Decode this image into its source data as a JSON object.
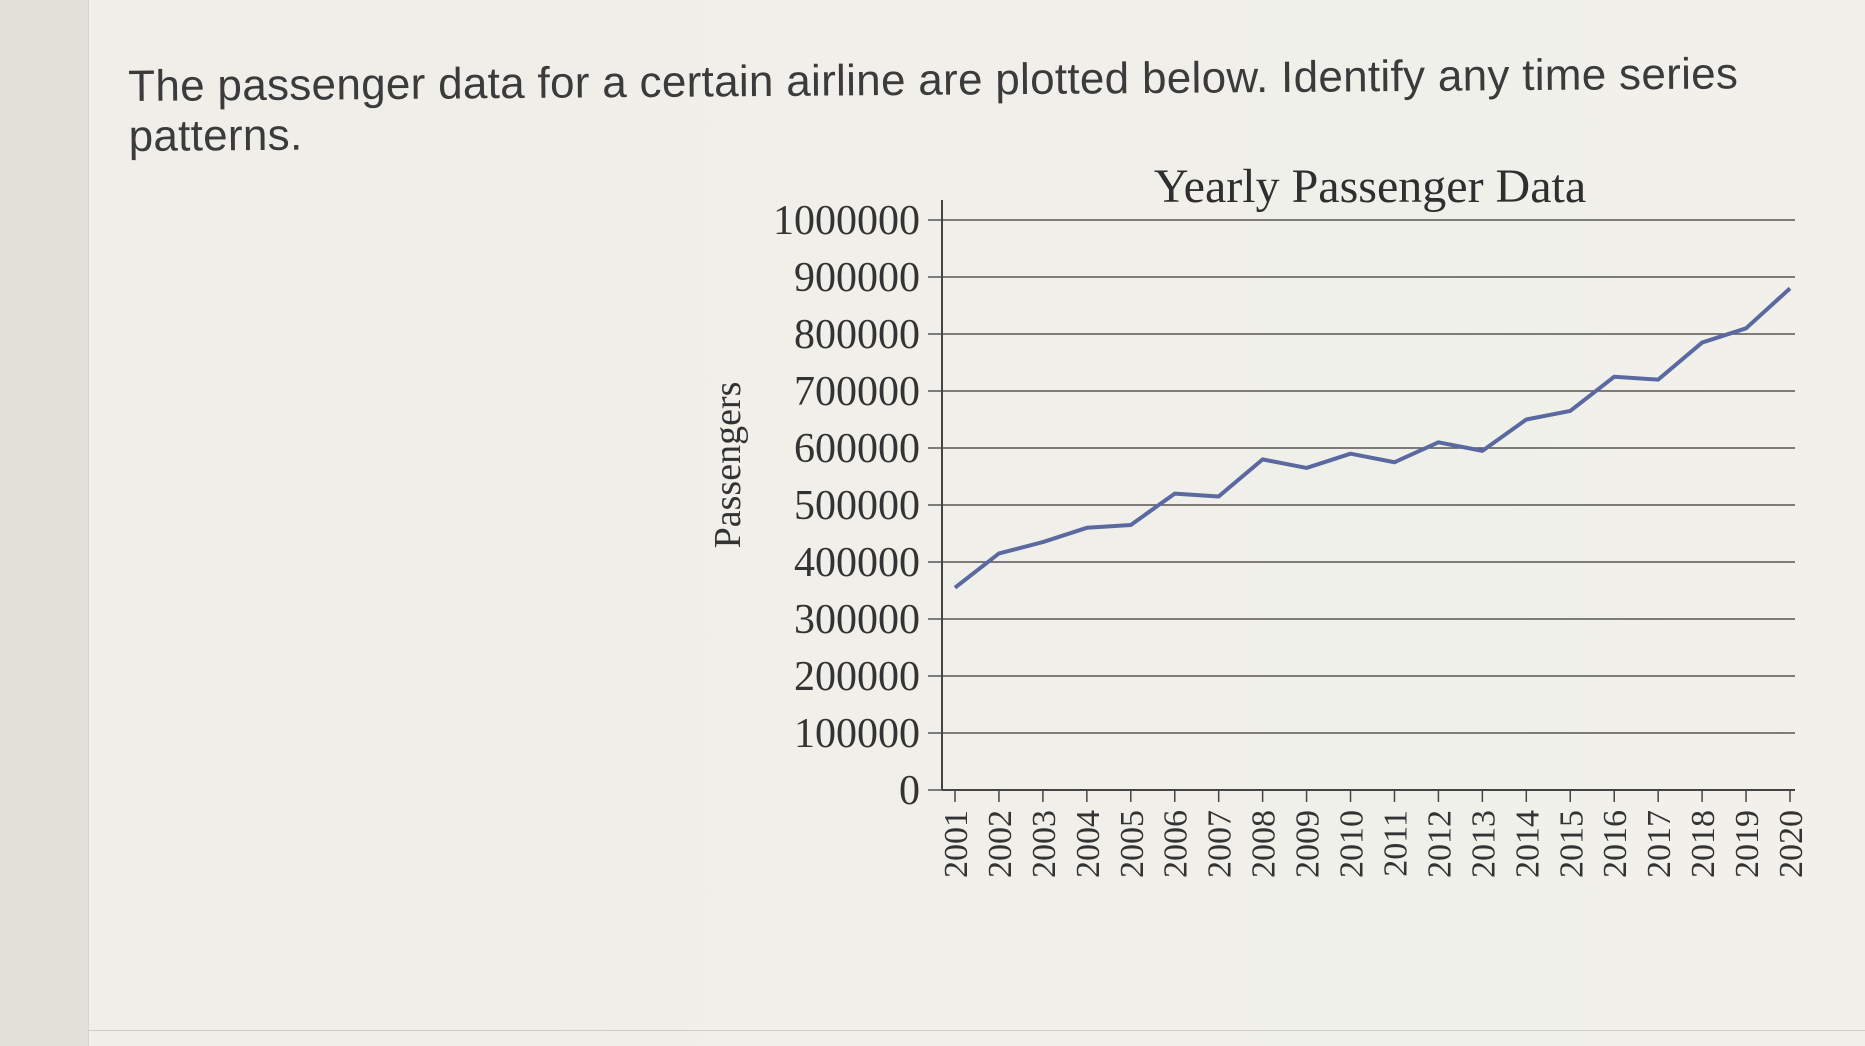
{
  "question": {
    "text": "The passenger data for a certain airline are plotted below. Identify any time series patterns."
  },
  "chart_data": {
    "type": "line",
    "title": "Yearly Passenger Data",
    "xlabel": "",
    "ylabel": "Passengers",
    "ylim": [
      0,
      1000000
    ],
    "yticks": [
      "0",
      "100000",
      "200000",
      "300000",
      "400000",
      "500000",
      "600000",
      "700000",
      "800000",
      "900000",
      "1000000"
    ],
    "categories": [
      "2001",
      "2002",
      "2003",
      "2004",
      "2005",
      "2006",
      "2007",
      "2008",
      "2009",
      "2010",
      "2011",
      "2012",
      "2013",
      "2014",
      "2015",
      "2016",
      "2017",
      "2018",
      "2019",
      "2020"
    ],
    "series": [
      {
        "values": [
          355000,
          415000,
          435000,
          460000,
          465000,
          520000,
          515000,
          580000,
          565000,
          590000,
          575000,
          610000,
          595000,
          650000,
          665000,
          725000,
          720000,
          785000,
          810000,
          880000
        ],
        "color": "#5a6aa0"
      }
    ],
    "grid": true,
    "legend": "none"
  }
}
